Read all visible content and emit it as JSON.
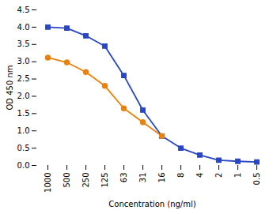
{
  "chart_data": {
    "type": "line",
    "xlabel": "Concentration (ng/ml)",
    "ylabel": "OD 450 nm",
    "categories": [
      "1000",
      "500",
      "250",
      "125",
      "63",
      "31",
      "16",
      "8",
      "4",
      "2",
      "1",
      "0.5"
    ],
    "series": [
      {
        "color": "#2946c4",
        "marker": "square",
        "values": [
          4.0,
          3.97,
          3.75,
          3.45,
          2.6,
          1.6,
          0.85,
          0.5,
          0.3,
          0.15,
          0.12,
          0.1
        ]
      },
      {
        "color": "#e8820a",
        "marker": "circle",
        "values": [
          3.12,
          2.98,
          2.7,
          2.3,
          1.65,
          1.25,
          0.85,
          null,
          null,
          null,
          null,
          null
        ]
      }
    ],
    "ylim": [
      0.0,
      4.5
    ],
    "yticks": [
      {
        "value": 0.0,
        "label": "0.0"
      },
      0.5,
      {
        "value": 1.0,
        "label": "1.0"
      },
      1.5,
      {
        "value": 2.0,
        "label": "2.0"
      },
      2.5,
      {
        "value": 3.0,
        "label": "3.0"
      },
      3.5,
      {
        "value": 4.0,
        "label": "4.0"
      },
      4.5
    ],
    "grid": false
  }
}
